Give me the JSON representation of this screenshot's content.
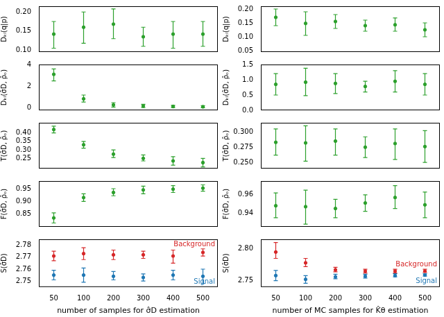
{
  "chart_data": [
    {
      "type": "scatter",
      "y_label": "Dₖₗ(q|p)",
      "categories": [
        "50",
        "100",
        "200",
        "300",
        "400",
        "500"
      ],
      "tick_labels": "y",
      "marker": "circle",
      "ylim": [
        0.095,
        0.215
      ],
      "yticks": [
        {
          "value": 0.1,
          "label": "0.10"
        },
        {
          "value": 0.15,
          "label": "0.15"
        },
        {
          "value": 0.2,
          "label": "0.20"
        }
      ],
      "series": [
        {
          "color": "#2ca02c",
          "values": [
            0.142,
            0.16,
            0.168,
            0.135,
            0.142,
            0.142
          ],
          "lower": [
            0.105,
            0.118,
            0.13,
            0.11,
            0.105,
            0.11
          ],
          "upper": [
            0.175,
            0.2,
            0.208,
            0.16,
            0.175,
            0.175
          ]
        }
      ]
    },
    {
      "type": "scatter",
      "y_label": "Dₖₗ(σ̂D, ρ̂ₒ)",
      "categories": [
        "50",
        "100",
        "200",
        "300",
        "400",
        "500"
      ],
      "tick_labels": "y",
      "marker": "circle",
      "ylim": [
        -0.2,
        4
      ],
      "yticks": [
        0,
        2,
        4
      ],
      "series": [
        {
          "color": "#2ca02c",
          "values": [
            3.1,
            0.85,
            0.3,
            0.2,
            0.15,
            0.12
          ],
          "lower": [
            2.5,
            0.55,
            0.1,
            0.05,
            0.05,
            0.03
          ],
          "upper": [
            3.6,
            1.2,
            0.5,
            0.35,
            0.25,
            0.22
          ]
        }
      ]
    },
    {
      "type": "scatter",
      "y_label": "T(σ̂D, ρ̂ₒ)",
      "categories": [
        "50",
        "100",
        "200",
        "300",
        "400",
        "500"
      ],
      "tick_labels": "y",
      "marker": "circle",
      "ylim": [
        0.19,
        0.46
      ],
      "yticks": [
        {
          "value": 0.25,
          "label": "0.25"
        },
        {
          "value": 0.3,
          "label": "0.30"
        },
        {
          "value": 0.35,
          "label": "0.35"
        },
        {
          "value": 0.4,
          "label": "0.40"
        }
      ],
      "series": [
        {
          "color": "#2ca02c",
          "values": [
            0.42,
            0.33,
            0.275,
            0.25,
            0.235,
            0.225
          ],
          "lower": [
            0.4,
            0.31,
            0.255,
            0.235,
            0.21,
            0.2
          ],
          "upper": [
            0.44,
            0.35,
            0.3,
            0.27,
            0.26,
            0.25
          ]
        }
      ]
    },
    {
      "type": "scatter",
      "y_label": "F(σ̂D, ρ̂ₒ)",
      "categories": [
        "50",
        "100",
        "200",
        "300",
        "400",
        "500"
      ],
      "tick_labels": "y",
      "marker": "circle",
      "ylim": [
        0.8,
        0.98
      ],
      "yticks": [
        {
          "value": 0.85,
          "label": "0.85"
        },
        {
          "value": 0.9,
          "label": "0.90"
        },
        {
          "value": 0.95,
          "label": "0.95"
        }
      ],
      "series": [
        {
          "color": "#2ca02c",
          "values": [
            0.835,
            0.915,
            0.935,
            0.945,
            0.948,
            0.952
          ],
          "lower": [
            0.815,
            0.9,
            0.922,
            0.93,
            0.935,
            0.94
          ],
          "upper": [
            0.855,
            0.93,
            0.95,
            0.96,
            0.962,
            0.965
          ]
        }
      ]
    },
    {
      "type": "scatter",
      "y_label": "S(σ̂D)",
      "x_label": "number of samples for σ̂D estimation",
      "categories": [
        "50",
        "100",
        "200",
        "300",
        "400",
        "500"
      ],
      "marker": "circle",
      "ylim": [
        2.745,
        2.785
      ],
      "yticks": [
        {
          "value": 2.75,
          "label": "2.75"
        },
        {
          "value": 2.76,
          "label": "2.76"
        },
        {
          "value": 2.77,
          "label": "2.77"
        },
        {
          "value": 2.78,
          "label": "2.78"
        }
      ],
      "series": [
        {
          "name": "Background",
          "color": "#d62728",
          "values": [
            2.771,
            2.773,
            2.772,
            2.772,
            2.771,
            2.774
          ],
          "lower": [
            2.767,
            2.768,
            2.768,
            2.769,
            2.765,
            2.771
          ],
          "upper": [
            2.775,
            2.778,
            2.776,
            2.775,
            2.776,
            2.777
          ]
        },
        {
          "name": "Signal",
          "color": "#1f77b4",
          "values": [
            2.755,
            2.755,
            2.754,
            2.753,
            2.755,
            2.754
          ],
          "lower": [
            2.751,
            2.749,
            2.751,
            2.75,
            2.751,
            2.748
          ],
          "upper": [
            2.759,
            2.761,
            2.758,
            2.756,
            2.759,
            2.76
          ]
        }
      ]
    },
    {
      "type": "scatter",
      "y_label": "Dₖₗ(q|p)",
      "categories": [
        "50",
        "100",
        "200",
        "300",
        "400",
        "500"
      ],
      "tick_labels": "y",
      "marker": "circle",
      "ylim": [
        0.045,
        0.21
      ],
      "yticks": [
        {
          "value": 0.05,
          "label": "0.05"
        },
        {
          "value": 0.1,
          "label": "0.10"
        },
        {
          "value": 0.15,
          "label": "0.15"
        },
        {
          "value": 0.2,
          "label": "0.20"
        }
      ],
      "series": [
        {
          "color": "#2ca02c",
          "values": [
            0.17,
            0.148,
            0.155,
            0.14,
            0.143,
            0.125
          ],
          "lower": [
            0.14,
            0.105,
            0.13,
            0.12,
            0.12,
            0.1
          ],
          "upper": [
            0.2,
            0.19,
            0.18,
            0.16,
            0.168,
            0.15
          ]
        }
      ]
    },
    {
      "type": "scatter",
      "y_label": "Dₖₗ(σ̂D, ρ̂ₒ)",
      "categories": [
        "50",
        "100",
        "200",
        "300",
        "400",
        "500"
      ],
      "tick_labels": "y",
      "marker": "circle",
      "ylim": [
        0,
        1.5
      ],
      "yticks": [
        {
          "value": 0,
          "label": "0.0"
        },
        {
          "value": 0.5,
          "label": "0.5"
        },
        {
          "value": 1,
          "label": "1.0"
        },
        {
          "value": 1.5,
          "label": "1.5"
        }
      ],
      "series": [
        {
          "color": "#2ca02c",
          "values": [
            0.85,
            0.92,
            0.88,
            0.78,
            0.95,
            0.85
          ],
          "lower": [
            0.5,
            0.48,
            0.55,
            0.6,
            0.6,
            0.5
          ],
          "upper": [
            1.2,
            1.38,
            1.2,
            0.95,
            1.3,
            1.2
          ]
        }
      ]
    },
    {
      "type": "scatter",
      "y_label": "T(σ̂D, ρ̂ₒ)",
      "categories": [
        "50",
        "100",
        "200",
        "300",
        "400",
        "500"
      ],
      "tick_labels": "y",
      "marker": "circle",
      "ylim": [
        0.24,
        0.315
      ],
      "yticks": [
        {
          "value": 0.25,
          "label": "0.250"
        },
        {
          "value": 0.275,
          "label": "0.275"
        },
        {
          "value": 0.3,
          "label": "0.300"
        }
      ],
      "series": [
        {
          "color": "#2ca02c",
          "values": [
            0.283,
            0.282,
            0.285,
            0.275,
            0.281,
            0.276
          ],
          "lower": [
            0.262,
            0.252,
            0.262,
            0.258,
            0.255,
            0.25
          ],
          "upper": [
            0.305,
            0.31,
            0.305,
            0.292,
            0.305,
            0.302
          ]
        }
      ]
    },
    {
      "type": "scatter",
      "y_label": "F(σ̂D, ρ̂ₒ)",
      "categories": [
        "50",
        "100",
        "200",
        "300",
        "400",
        "500"
      ],
      "tick_labels": "y",
      "marker": "circle",
      "ylim": [
        0.925,
        0.975
      ],
      "yticks": [
        {
          "value": 0.94,
          "label": "0.94"
        },
        {
          "value": 0.96,
          "label": "0.96"
        }
      ],
      "series": [
        {
          "color": "#2ca02c",
          "values": [
            0.948,
            0.947,
            0.945,
            0.951,
            0.957,
            0.949
          ],
          "lower": [
            0.935,
            0.928,
            0.935,
            0.942,
            0.945,
            0.935
          ],
          "upper": [
            0.962,
            0.965,
            0.955,
            0.96,
            0.97,
            0.963
          ]
        }
      ]
    },
    {
      "type": "scatter",
      "y_label": "S(σ̂D)",
      "x_label": "number of MC samples for K̂θ estimation",
      "categories": [
        "50",
        "100",
        "200",
        "300",
        "400",
        "500"
      ],
      "marker": "circle",
      "ylim": [
        2.74,
        2.815
      ],
      "yticks": [
        {
          "value": 2.75,
          "label": "2.75"
        },
        {
          "value": 2.8,
          "label": "2.80"
        }
      ],
      "series": [
        {
          "name": "Background",
          "color": "#d62728",
          "values": [
            2.795,
            2.778,
            2.767,
            2.765,
            2.765,
            2.765
          ],
          "lower": [
            2.785,
            2.772,
            2.764,
            2.762,
            2.762,
            2.763
          ],
          "upper": [
            2.81,
            2.785,
            2.771,
            2.768,
            2.768,
            2.768
          ]
        },
        {
          "name": "Signal",
          "color": "#1f77b4",
          "values": [
            2.758,
            2.752,
            2.756,
            2.757,
            2.758,
            2.759
          ],
          "lower": [
            2.75,
            2.746,
            2.753,
            2.754,
            2.756,
            2.757
          ],
          "upper": [
            2.766,
            2.758,
            2.76,
            2.76,
            2.761,
            2.761
          ]
        }
      ]
    }
  ]
}
